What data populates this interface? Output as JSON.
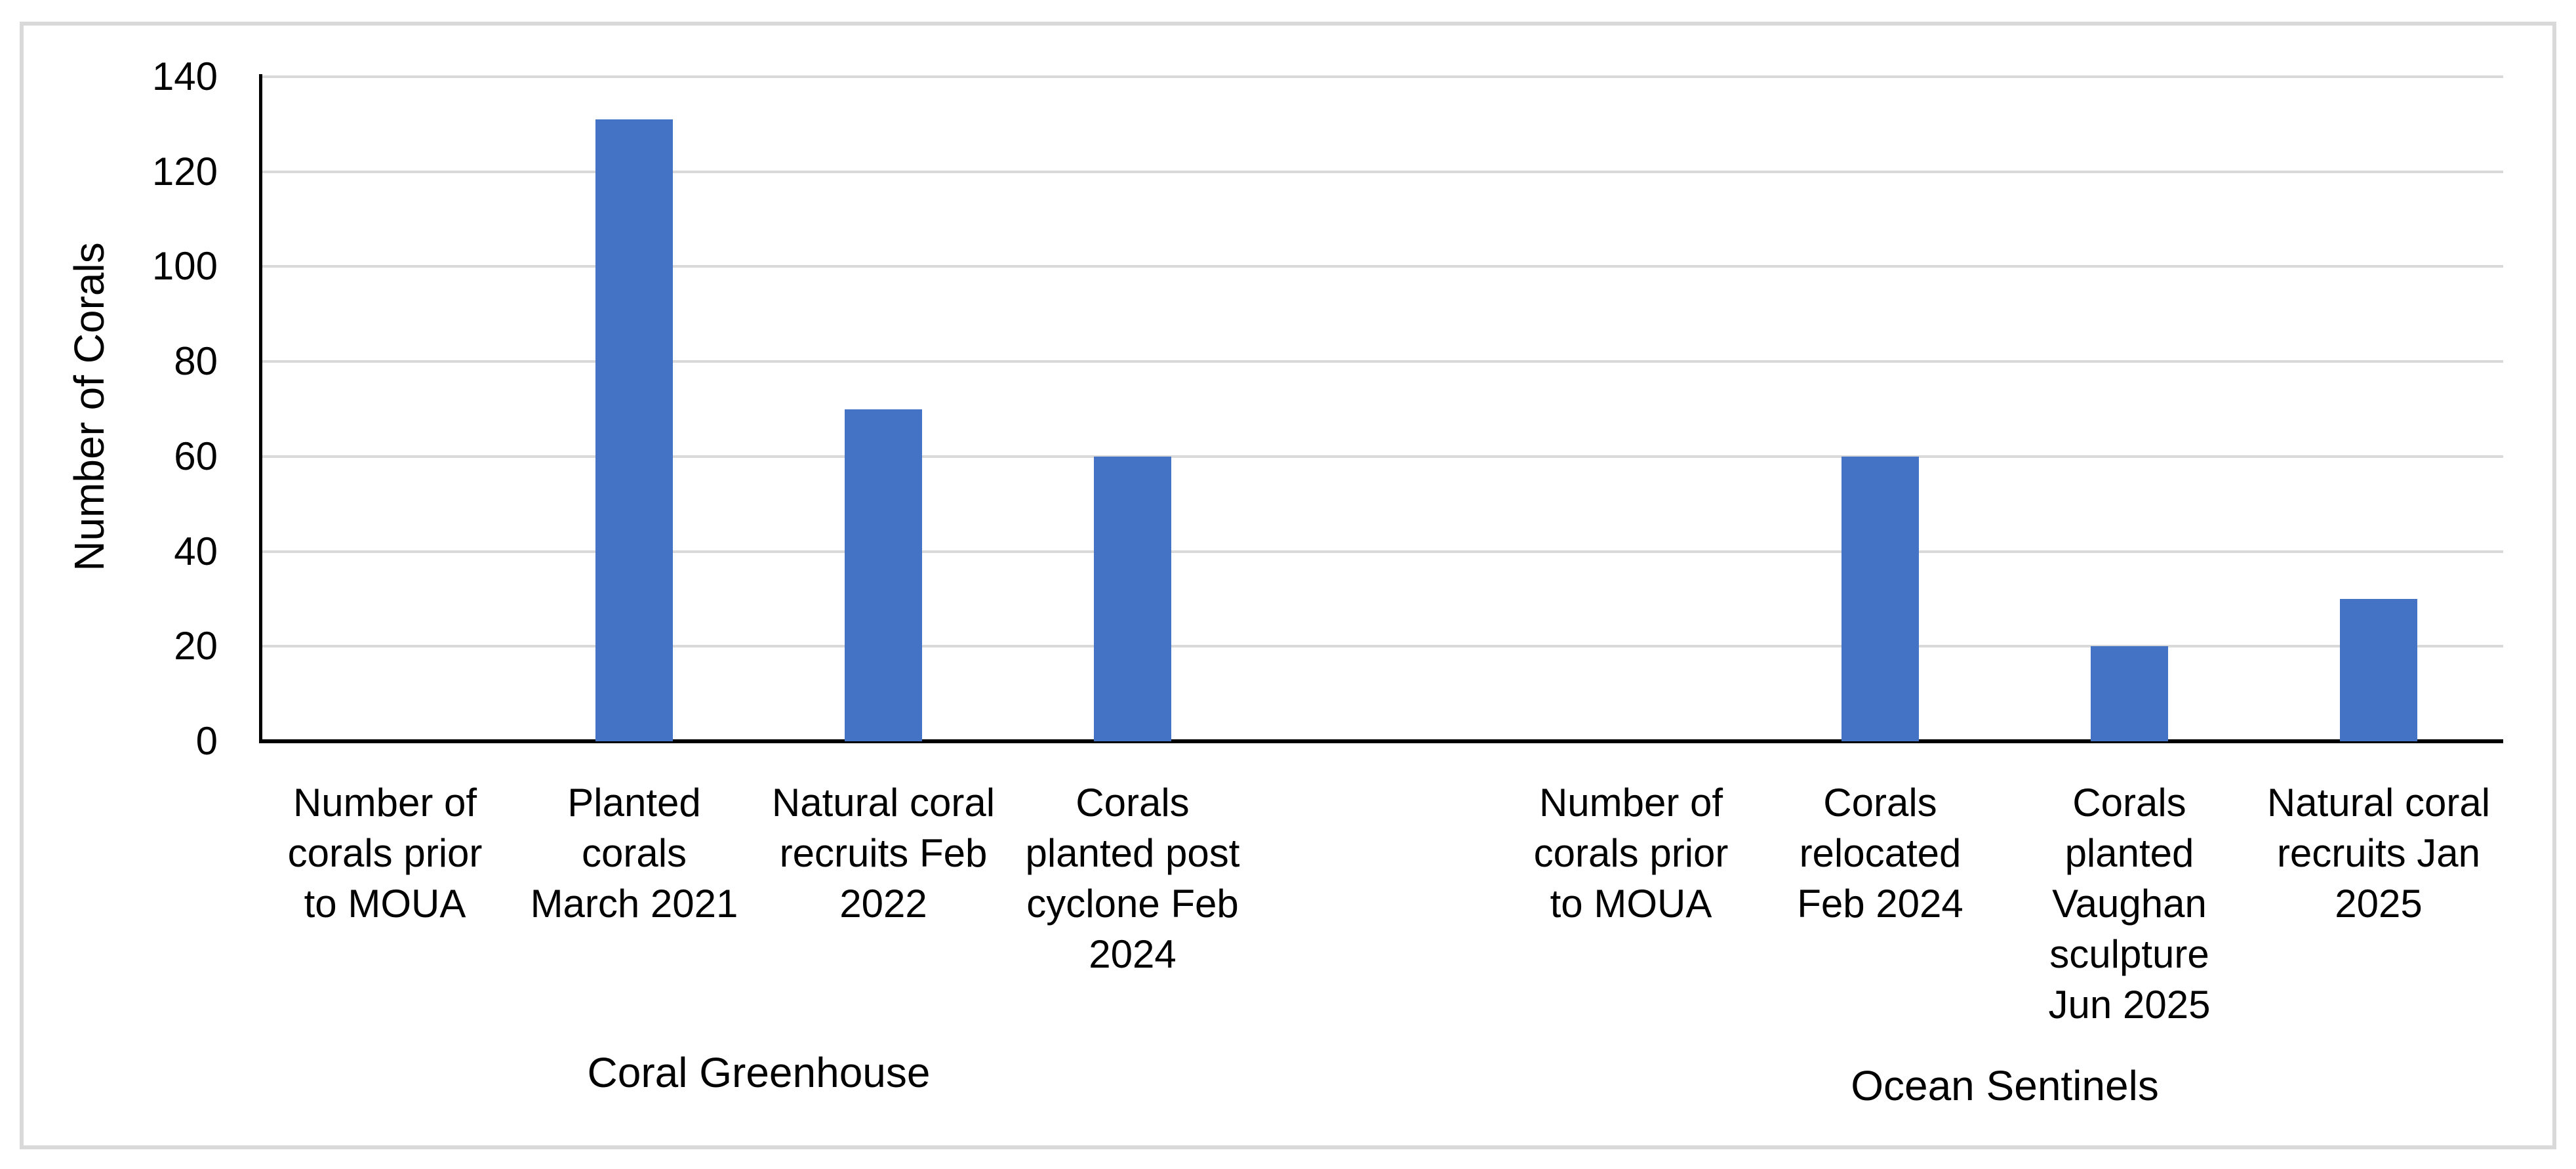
{
  "figure": {
    "background_color": "#ffffff",
    "border_color": "#d9d9d9",
    "bar_color": "#4472c4",
    "gridline_color": "#d9d9d9",
    "axis_color": "#000000",
    "text_color": "#000000"
  },
  "chart_data": {
    "type": "bar",
    "title": "",
    "xlabel": "",
    "ylabel": "Number of Corals",
    "ylim": [
      0,
      140
    ],
    "ytick_step": 20,
    "yticks": [
      0,
      20,
      40,
      60,
      80,
      100,
      120,
      140
    ],
    "grid": true,
    "legend": "none",
    "bar_color": "#4472c4",
    "groups": [
      {
        "label": "Coral Greenhouse",
        "categories": [
          "Number of\ncorals prior\nto MOUA",
          "Planted\ncorals\nMarch 2021",
          "Natural coral\nrecruits Feb\n2022",
          "Corals\nplanted post\ncyclone Feb\n2024"
        ],
        "values": [
          0,
          131,
          70,
          60
        ]
      },
      {
        "label": "Ocean Sentinels",
        "categories": [
          "Number of\ncorals prior\nto MOUA",
          "Corals\nrelocated\nFeb 2024",
          "Corals\nplanted\nVaughan\nsculpture\nJun 2025",
          "Natural coral\nrecruits Jan\n2025"
        ],
        "values": [
          0,
          60,
          20,
          30
        ]
      }
    ]
  }
}
